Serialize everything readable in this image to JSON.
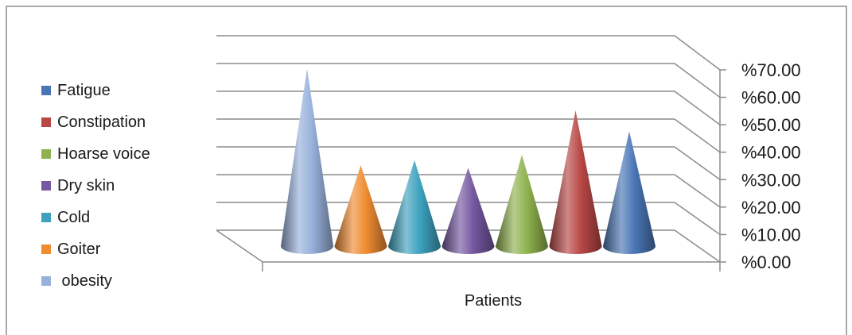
{
  "chart_data": {
    "type": "bar",
    "shape": "cone",
    "title": "",
    "xlabel": "Patients",
    "ylabel": "",
    "categories": [
      "Patients"
    ],
    "ylim": [
      0,
      70
    ],
    "ytick_labels": [
      "%0.00",
      "%10.00",
      "%20.00",
      "%30.00",
      "%40.00",
      "%50.00",
      "%60.00",
      "%70.00"
    ],
    "ytick_values": [
      0,
      10,
      20,
      30,
      40,
      50,
      60,
      70
    ],
    "grid": true,
    "legend_position": "left",
    "series": [
      {
        "name": "Fatigue",
        "values": [
          44
        ],
        "color": "#4a76b5"
      },
      {
        "name": "Constipation",
        "values": [
          52
        ],
        "color": "#b84846"
      },
      {
        "name": "Hoarse voice",
        "values": [
          35
        ],
        "color": "#8fb24e"
      },
      {
        "name": "Dry skin",
        "values": [
          30
        ],
        "color": "#7458a0"
      },
      {
        "name": "Cold",
        "values": [
          33
        ],
        "color": "#3ea2bf"
      },
      {
        "name": "Goiter",
        "values": [
          31
        ],
        "color": "#ef8c32"
      },
      {
        "name": " obesity",
        "values": [
          68
        ],
        "color": "#98b1db"
      }
    ]
  }
}
